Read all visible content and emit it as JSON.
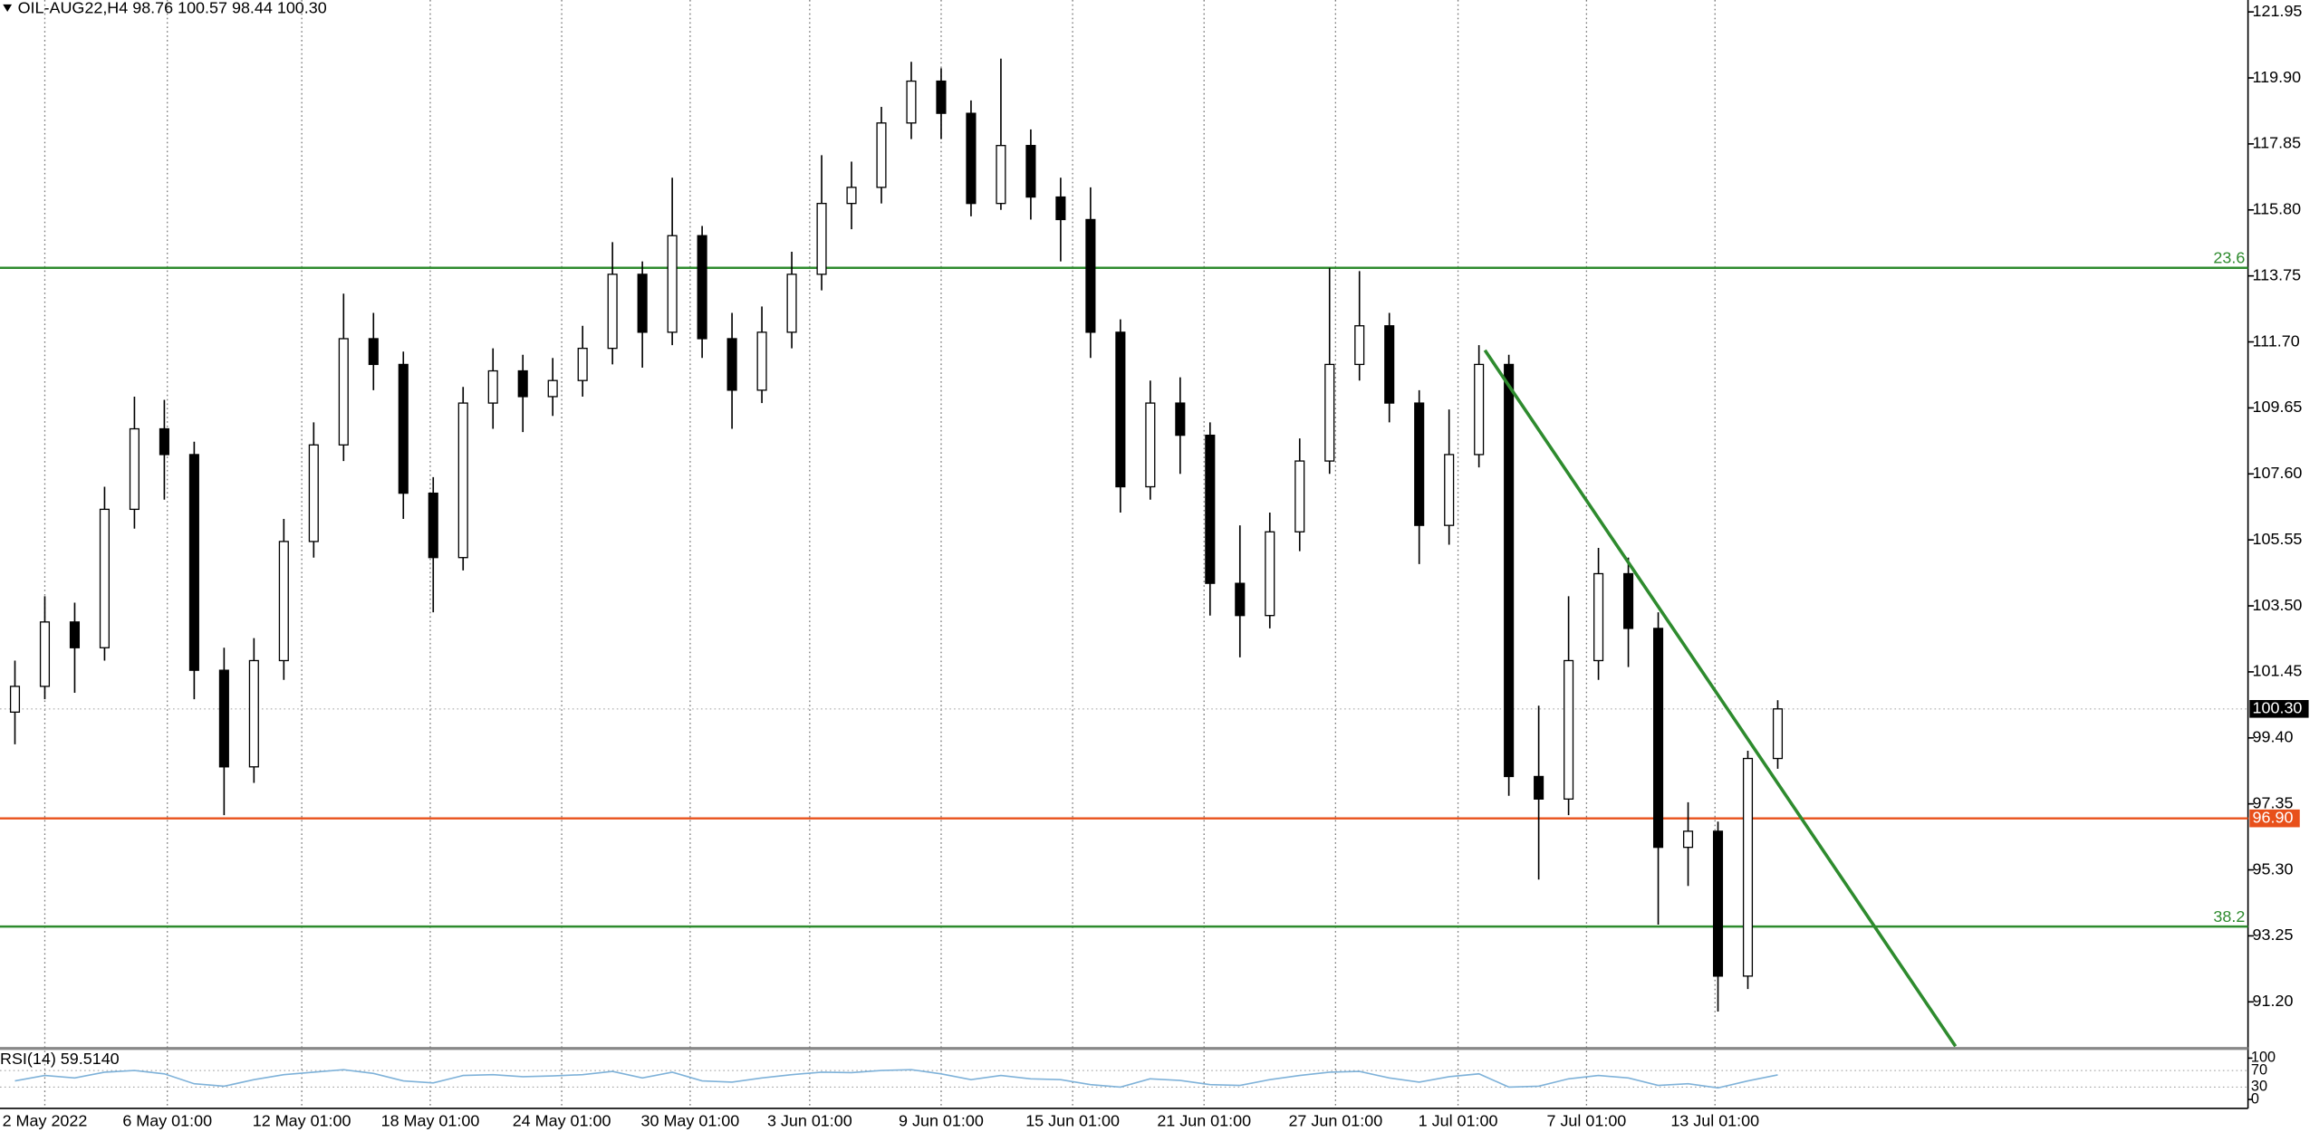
{
  "header": {
    "title": "OIL-AUG22,H4  98.76 100.57 98.44 100.30"
  },
  "chart_data": {
    "type": "candlestick",
    "open": [
      100.2,
      101.0,
      103.0,
      102.2,
      106.5,
      109.0,
      108.2,
      101.5,
      98.5,
      101.8,
      105.5,
      108.5,
      111.8,
      111.0,
      107.0,
      105.0,
      109.8,
      110.8,
      110.0,
      110.5,
      111.5,
      113.8,
      112.0,
      115.0,
      111.8,
      110.2,
      112.0,
      113.8,
      116.0,
      116.5,
      118.5,
      119.8,
      118.8,
      116.0,
      117.8,
      116.2,
      115.5,
      112.0,
      107.2,
      109.8,
      108.8,
      104.2,
      103.2,
      105.8,
      108.0,
      111.0,
      112.2,
      109.8,
      106.0,
      108.2,
      111.0,
      98.2,
      97.5,
      101.8,
      104.5,
      102.8,
      96.0,
      96.5,
      92.0,
      98.76
    ],
    "high": [
      101.8,
      103.8,
      103.6,
      107.2,
      110.0,
      109.9,
      108.6,
      102.2,
      102.5,
      106.2,
      109.2,
      113.2,
      112.6,
      111.4,
      107.5,
      110.3,
      111.5,
      111.3,
      111.2,
      112.2,
      114.8,
      114.2,
      116.8,
      115.3,
      112.6,
      112.8,
      114.5,
      117.5,
      117.3,
      119.0,
      120.4,
      120.2,
      119.2,
      120.5,
      118.3,
      116.8,
      116.5,
      112.4,
      110.5,
      110.6,
      109.2,
      106.0,
      106.4,
      108.7,
      114.0,
      113.9,
      112.6,
      110.2,
      109.6,
      111.6,
      111.3,
      100.4,
      103.8,
      105.3,
      105.0,
      103.3,
      97.4,
      96.8,
      99.0,
      100.57
    ],
    "low": [
      99.2,
      100.6,
      100.8,
      101.8,
      105.9,
      106.8,
      100.6,
      97.0,
      98.0,
      101.2,
      105.0,
      108.0,
      110.2,
      106.2,
      103.3,
      104.6,
      109.0,
      108.9,
      109.4,
      110.0,
      111.0,
      110.9,
      111.6,
      111.2,
      109.0,
      109.8,
      111.5,
      113.3,
      115.2,
      116.0,
      118.0,
      118.0,
      115.6,
      115.8,
      115.5,
      114.2,
      111.2,
      106.4,
      106.8,
      107.6,
      103.2,
      101.9,
      102.8,
      105.2,
      107.6,
      110.5,
      109.2,
      104.8,
      105.4,
      107.8,
      97.6,
      95.0,
      97.0,
      101.2,
      101.6,
      93.6,
      94.8,
      90.9,
      91.6,
      98.44
    ],
    "close": [
      101.0,
      103.0,
      102.2,
      106.5,
      109.0,
      108.2,
      101.5,
      98.5,
      101.8,
      105.5,
      108.5,
      111.8,
      111.0,
      107.0,
      105.0,
      109.8,
      110.8,
      110.0,
      110.5,
      111.5,
      113.8,
      112.0,
      115.0,
      111.8,
      110.2,
      112.0,
      113.8,
      116.0,
      116.5,
      118.5,
      119.8,
      118.8,
      116.0,
      117.8,
      116.2,
      115.5,
      112.0,
      107.2,
      109.8,
      108.8,
      104.2,
      103.2,
      105.8,
      108.0,
      111.0,
      112.2,
      109.8,
      106.0,
      108.2,
      111.0,
      98.2,
      97.5,
      101.8,
      104.5,
      102.8,
      96.0,
      96.5,
      92.0,
      98.76,
      100.3
    ],
    "xlim": [
      -0.5,
      74.74
    ],
    "xticks": [
      {
        "value": 1.0,
        "label": "2 May 2022"
      },
      {
        "value": 5.1,
        "label": "6 May 01:00"
      },
      {
        "value": 9.6,
        "label": "12 May 01:00"
      },
      {
        "value": 13.9,
        "label": "18 May 01:00"
      },
      {
        "value": 18.3,
        "label": "24 May 01:00"
      },
      {
        "value": 22.6,
        "label": "30 May 01:00"
      },
      {
        "value": 26.6,
        "label": "3 Jun 01:00"
      },
      {
        "value": 31.0,
        "label": "9 Jun 01:00"
      },
      {
        "value": 35.4,
        "label": "15 Jun 01:00"
      },
      {
        "value": 39.8,
        "label": "21 Jun 01:00"
      },
      {
        "value": 44.2,
        "label": "27 Jun 01:00"
      },
      {
        "value": 48.3,
        "label": "1 Jul 01:00"
      },
      {
        "value": 52.6,
        "label": "7 Jul 01:00"
      },
      {
        "value": 56.9,
        "label": "13 Jul 01:00"
      }
    ],
    "ylim": [
      89.82,
      122.32
    ],
    "yticks": [
      121.95,
      {
        "value": 119.9,
        "label": "119.90"
      },
      117.85,
      {
        "value": 115.8,
        "label": "115.80"
      },
      113.75,
      {
        "value": 111.7,
        "label": "111.70"
      },
      109.65,
      {
        "value": 107.6,
        "label": "107.60"
      },
      105.55,
      {
        "value": 103.5,
        "label": "103.50"
      },
      101.45,
      {
        "value": 99.4,
        "label": "99.40"
      },
      97.35,
      {
        "value": 95.3,
        "label": "95.30"
      },
      93.25,
      {
        "value": 91.2,
        "label": "91.20"
      }
    ],
    "grid": true,
    "levels": [
      {
        "name": "23.6",
        "value": 114.0,
        "color": "#2e8b2e"
      },
      {
        "name": "38.2",
        "value": 93.54,
        "color": "#2e8b2e"
      }
    ],
    "support": {
      "value": 96.9,
      "label": "96.90",
      "color": "#e8501a"
    },
    "last_price": {
      "value": 100.3,
      "label": "100.30"
    },
    "trendline": {
      "x": [
        49.2,
        64.95
      ],
      "y": [
        111.44,
        89.82
      ],
      "color": "#2e8b2e"
    },
    "rsi": {
      "label": "RSI(14) 59.5140",
      "ylim": [
        0,
        100
      ],
      "yticks": [
        100,
        70,
        30,
        0
      ],
      "color": "#7fb2d9",
      "values": [
        45,
        58,
        52,
        66,
        70,
        62,
        38,
        32,
        48,
        60,
        66,
        72,
        63,
        45,
        40,
        58,
        60,
        55,
        57,
        60,
        68,
        52,
        66,
        45,
        42,
        52,
        60,
        66,
        65,
        70,
        72,
        62,
        48,
        58,
        50,
        48,
        36,
        30,
        50,
        46,
        36,
        34,
        48,
        58,
        66,
        68,
        52,
        42,
        55,
        62,
        30,
        32,
        50,
        58,
        52,
        34,
        38,
        28,
        45,
        59.51
      ]
    }
  }
}
